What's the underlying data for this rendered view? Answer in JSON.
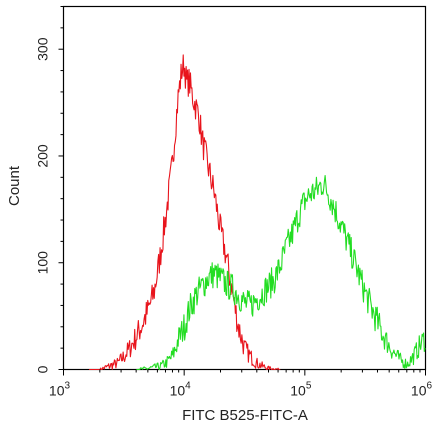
{
  "chart_data": {
    "type": "line",
    "title": "",
    "xlabel": "FITC B525-FITC-A",
    "ylabel": "Count",
    "x_scale": "log",
    "xlim": [
      1000,
      1000000
    ],
    "ylim": [
      0,
      340
    ],
    "x_ticks": [
      {
        "value": 1000,
        "base": "10",
        "exp": "3"
      },
      {
        "value": 10000,
        "base": "10",
        "exp": "4"
      },
      {
        "value": 100000,
        "base": "10",
        "exp": "5"
      },
      {
        "value": 1000000,
        "base": "10",
        "exp": "6"
      }
    ],
    "y_ticks": [
      {
        "value": 0,
        "label": "0"
      },
      {
        "value": 100,
        "label": "100"
      },
      {
        "value": 200,
        "label": "200"
      },
      {
        "value": 300,
        "label": "300"
      }
    ],
    "grid": false,
    "legend": "none",
    "series": [
      {
        "color": "#e8141c",
        "points": [
          [
            1630,
            0
          ],
          [
            2000,
            0
          ],
          [
            2240,
            2
          ],
          [
            2820,
            6
          ],
          [
            3160,
            12
          ],
          [
            3550,
            20
          ],
          [
            3980,
            30
          ],
          [
            4470,
            42
          ],
          [
            5010,
            55
          ],
          [
            5620,
            72
          ],
          [
            6310,
            105
          ],
          [
            7080,
            145
          ],
          [
            7940,
            190
          ],
          [
            8510,
            230
          ],
          [
            8910,
            255
          ],
          [
            9550,
            280
          ],
          [
            10000,
            286
          ],
          [
            10500,
            268
          ],
          [
            11000,
            270
          ],
          [
            11800,
            255
          ],
          [
            12600,
            245
          ],
          [
            13300,
            237
          ],
          [
            14100,
            215
          ],
          [
            15800,
            190
          ],
          [
            17800,
            165
          ],
          [
            20000,
            130
          ],
          [
            22400,
            105
          ],
          [
            25100,
            72
          ],
          [
            28200,
            40
          ],
          [
            31600,
            20
          ],
          [
            35500,
            12
          ],
          [
            39800,
            6
          ],
          [
            44700,
            3
          ],
          [
            50100,
            1
          ],
          [
            63100,
            0
          ]
        ]
      },
      {
        "color": "#22dd22",
        "points": [
          [
            4000,
            0
          ],
          [
            5010,
            1
          ],
          [
            6310,
            3
          ],
          [
            7080,
            6
          ],
          [
            7940,
            12
          ],
          [
            8510,
            20
          ],
          [
            8910,
            28
          ],
          [
            10000,
            40
          ],
          [
            11200,
            58
          ],
          [
            12600,
            70
          ],
          [
            14100,
            78
          ],
          [
            15800,
            86
          ],
          [
            17800,
            90
          ],
          [
            20000,
            85
          ],
          [
            22400,
            80
          ],
          [
            25100,
            76
          ],
          [
            28200,
            70
          ],
          [
            31600,
            62
          ],
          [
            35500,
            60
          ],
          [
            39800,
            66
          ],
          [
            44700,
            72
          ],
          [
            50100,
            78
          ],
          [
            56200,
            85
          ],
          [
            63100,
            98
          ],
          [
            70800,
            115
          ],
          [
            79400,
            128
          ],
          [
            89100,
            145
          ],
          [
            100000,
            158
          ],
          [
            112000,
            165
          ],
          [
            126000,
            168
          ],
          [
            141000,
            175
          ],
          [
            158000,
            165
          ],
          [
            178000,
            150
          ],
          [
            200000,
            135
          ],
          [
            224000,
            120
          ],
          [
            251000,
            105
          ],
          [
            282000,
            88
          ],
          [
            316000,
            72
          ],
          [
            355000,
            58
          ],
          [
            398000,
            45
          ],
          [
            447000,
            32
          ],
          [
            501000,
            22
          ],
          [
            562000,
            14
          ],
          [
            631000,
            8
          ],
          [
            708000,
            5
          ],
          [
            794000,
            12
          ],
          [
            891000,
            22
          ],
          [
            1000000,
            30
          ]
        ]
      }
    ]
  }
}
